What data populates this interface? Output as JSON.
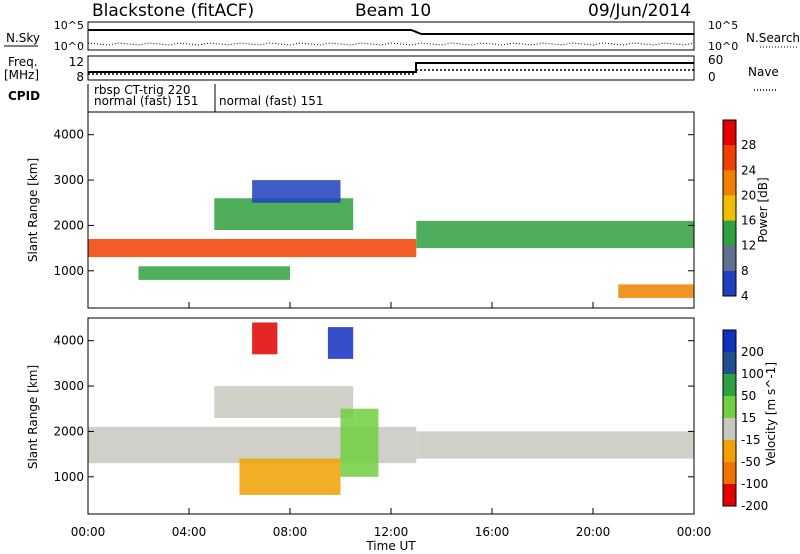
{
  "header": {
    "station": "Blackstone (fitACF)",
    "beam": "Beam 10",
    "date": "09/Jun/2014"
  },
  "top_panels": {
    "nsky_label": "N.Sky",
    "nsky_ticks": [
      "10^5",
      "10^0"
    ],
    "nsearch_label": "N.Search",
    "nsearch_ticks": [
      "10^5",
      "10^0"
    ],
    "freq_label": [
      "Freq.",
      "[MHz]"
    ],
    "freq_ticks": [
      "12",
      "8"
    ],
    "nave_label": "Nave",
    "nave_ticks": [
      "60",
      "0"
    ],
    "cpid_label": "CPID",
    "cpid_texts": [
      "rbsp CT-trig 220",
      "normal (fast) 151",
      "normal (fast) 151"
    ]
  },
  "chart_data": [
    {
      "type": "heatmap",
      "name": "power",
      "ylabel": "Slant Range [km]",
      "yticks": [
        "4000",
        "3000",
        "2000",
        "1000"
      ],
      "ylim": [
        180,
        4500
      ],
      "xlim": [
        0,
        24
      ],
      "colorbar": {
        "label": "Power [dB]",
        "ticks": [
          "28",
          "24",
          "20",
          "16",
          "12",
          "8",
          "4"
        ],
        "colors": [
          "#e00000",
          "#f04000",
          "#f08000",
          "#f0c000",
          "#30a040",
          "#607090",
          "#2040c0"
        ]
      },
      "bands": [
        {
          "t": [
            0.0,
            13.0
          ],
          "r": [
            1300,
            1700
          ],
          "color": "#f04000"
        },
        {
          "t": [
            5.0,
            10.5
          ],
          "r": [
            1900,
            2600
          ],
          "color": "#30a040"
        },
        {
          "t": [
            6.5,
            10.0
          ],
          "r": [
            2500,
            3000
          ],
          "color": "#2040c0"
        },
        {
          "t": [
            2.0,
            8.0
          ],
          "r": [
            800,
            1100
          ],
          "color": "#30a040"
        },
        {
          "t": [
            13.0,
            24.0
          ],
          "r": [
            1500,
            2100
          ],
          "color": "#30a040"
        },
        {
          "t": [
            21.0,
            24.0
          ],
          "r": [
            400,
            700
          ],
          "color": "#f08000"
        }
      ]
    },
    {
      "type": "heatmap",
      "name": "velocity",
      "ylabel": "Slant Range [km]",
      "yticks": [
        "4000",
        "3000",
        "2000",
        "1000"
      ],
      "ylim": [
        180,
        4500
      ],
      "xlim": [
        0,
        24
      ],
      "colorbar": {
        "label": "Velocity [m s^-1]",
        "ticks": [
          "200",
          "100",
          "50",
          "15",
          "-15",
          "-50",
          "-100",
          "-200"
        ],
        "colors": [
          "#1030c0",
          "#205090",
          "#30a040",
          "#70d040",
          "#c8c8c0",
          "#f0a000",
          "#f07000",
          "#e00000"
        ]
      },
      "bands": [
        {
          "t": [
            0.0,
            13.0
          ],
          "r": [
            1300,
            2100
          ],
          "color": "#c8c8c0"
        },
        {
          "t": [
            5.0,
            10.5
          ],
          "r": [
            2300,
            3000
          ],
          "color": "#c8c8c0"
        },
        {
          "t": [
            6.0,
            10.0
          ],
          "r": [
            600,
            1400
          ],
          "color": "#f0a000"
        },
        {
          "t": [
            10.0,
            11.5
          ],
          "r": [
            1000,
            2500
          ],
          "color": "#70d040"
        },
        {
          "t": [
            13.0,
            24.0
          ],
          "r": [
            1400,
            2000
          ],
          "color": "#c8c8c0"
        },
        {
          "t": [
            6.5,
            7.5
          ],
          "r": [
            3700,
            4400
          ],
          "color": "#e00000"
        },
        {
          "t": [
            9.5,
            10.5
          ],
          "r": [
            3600,
            4300
          ],
          "color": "#1030c0"
        }
      ]
    }
  ],
  "xaxis": {
    "ticks": [
      "00:00",
      "04:00",
      "08:00",
      "12:00",
      "16:00",
      "20:00",
      "00:00"
    ],
    "label": "Time UT"
  }
}
